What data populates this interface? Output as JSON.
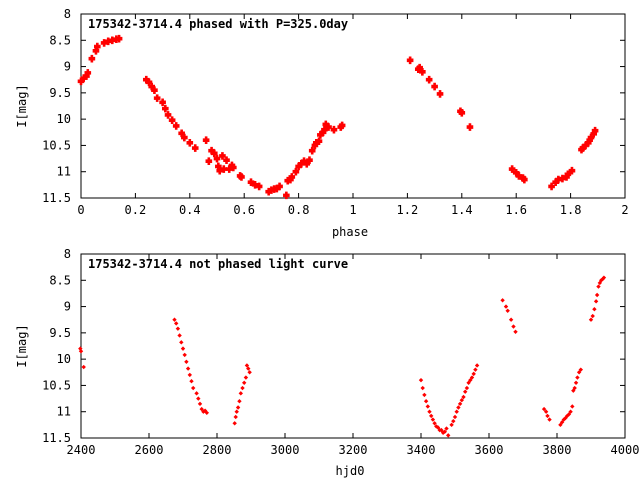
{
  "chart_data": [
    {
      "type": "scatter",
      "title": "175342-3714.4 phased with P=325.0day",
      "xlabel": "phase",
      "ylabel": "I[mag]",
      "xlim": [
        0,
        2
      ],
      "ylim": [
        11.5,
        8
      ],
      "y_inverted": true,
      "grid": false,
      "legend": "none",
      "marker_color": "#ff0000",
      "xticks": [
        "0",
        "0.2",
        "0.4",
        "0.6",
        "0.8",
        "1",
        "1.2",
        "1.4",
        "1.6",
        "1.8",
        "2"
      ],
      "yticks": [
        "8",
        "8.5",
        "9",
        "9.5",
        "10",
        "10.5",
        "11",
        "11.5"
      ],
      "series": [
        {
          "points": [
            [
              0.0,
              9.28
            ],
            [
              0.01,
              9.22
            ],
            [
              0.02,
              9.18
            ],
            [
              0.025,
              9.12
            ],
            [
              0.04,
              8.85
            ],
            [
              0.055,
              8.7
            ],
            [
              0.06,
              8.62
            ],
            [
              0.085,
              8.55
            ],
            [
              0.1,
              8.52
            ],
            [
              0.115,
              8.5
            ],
            [
              0.13,
              8.48
            ],
            [
              0.14,
              8.47
            ],
            [
              0.24,
              9.25
            ],
            [
              0.25,
              9.3
            ],
            [
              0.26,
              9.38
            ],
            [
              0.27,
              9.45
            ],
            [
              0.28,
              9.6
            ],
            [
              0.3,
              9.68
            ],
            [
              0.31,
              9.8
            ],
            [
              0.32,
              9.92
            ],
            [
              0.335,
              10.02
            ],
            [
              0.35,
              10.13
            ],
            [
              0.37,
              10.27
            ],
            [
              0.38,
              10.35
            ],
            [
              0.4,
              10.45
            ],
            [
              0.42,
              10.55
            ],
            [
              0.46,
              10.4
            ],
            [
              0.47,
              10.8
            ],
            [
              0.48,
              10.6
            ],
            [
              0.49,
              10.65
            ],
            [
              0.5,
              10.75
            ],
            [
              0.505,
              10.9
            ],
            [
              0.51,
              10.98
            ],
            [
              0.52,
              10.7
            ],
            [
              0.525,
              10.95
            ],
            [
              0.535,
              10.78
            ],
            [
              0.545,
              10.95
            ],
            [
              0.555,
              10.88
            ],
            [
              0.56,
              10.92
            ],
            [
              0.585,
              11.08
            ],
            [
              0.59,
              11.1
            ],
            [
              0.625,
              11.2
            ],
            [
              0.64,
              11.25
            ],
            [
              0.655,
              11.28
            ],
            [
              0.69,
              11.38
            ],
            [
              0.7,
              11.35
            ],
            [
              0.71,
              11.33
            ],
            [
              0.72,
              11.32
            ],
            [
              0.73,
              11.28
            ],
            [
              0.755,
              11.45
            ],
            [
              0.76,
              11.17
            ],
            [
              0.77,
              11.15
            ],
            [
              0.775,
              11.1
            ],
            [
              0.79,
              11.0
            ],
            [
              0.8,
              10.9
            ],
            [
              0.81,
              10.85
            ],
            [
              0.82,
              10.8
            ],
            [
              0.83,
              10.85
            ],
            [
              0.84,
              10.78
            ],
            [
              0.85,
              10.6
            ],
            [
              0.86,
              10.5
            ],
            [
              0.865,
              10.45
            ],
            [
              0.875,
              10.42
            ],
            [
              0.88,
              10.3
            ],
            [
              0.89,
              10.25
            ],
            [
              0.895,
              10.2
            ],
            [
              0.9,
              10.1
            ],
            [
              0.91,
              10.15
            ],
            [
              0.93,
              10.2
            ],
            [
              0.955,
              10.15
            ],
            [
              0.96,
              10.12
            ],
            [
              1.21,
              8.88
            ],
            [
              1.24,
              9.05
            ],
            [
              1.245,
              9.02
            ],
            [
              1.255,
              9.1
            ],
            [
              1.28,
              9.25
            ],
            [
              1.3,
              9.38
            ],
            [
              1.32,
              9.52
            ],
            [
              1.395,
              9.85
            ],
            [
              1.4,
              9.88
            ],
            [
              1.43,
              10.15
            ],
            [
              1.585,
              10.95
            ],
            [
              1.6,
              11.02
            ],
            [
              1.61,
              11.08
            ],
            [
              1.625,
              11.12
            ],
            [
              1.63,
              11.15
            ],
            [
              1.73,
              11.28
            ],
            [
              1.745,
              11.2
            ],
            [
              1.755,
              11.15
            ],
            [
              1.77,
              11.13
            ],
            [
              1.785,
              11.1
            ],
            [
              1.79,
              11.05
            ],
            [
              1.805,
              10.98
            ],
            [
              1.84,
              10.58
            ],
            [
              1.845,
              10.55
            ],
            [
              1.855,
              10.5
            ],
            [
              1.865,
              10.45
            ],
            [
              1.87,
              10.4
            ],
            [
              1.875,
              10.35
            ],
            [
              1.885,
              10.28
            ],
            [
              1.89,
              10.22
            ]
          ]
        }
      ]
    },
    {
      "type": "scatter",
      "title": "175342-3714.4 not phased light curve",
      "xlabel": "hjd0",
      "ylabel": "I[mag]",
      "xlim": [
        2400,
        4000
      ],
      "ylim": [
        11.5,
        8
      ],
      "y_inverted": true,
      "grid": false,
      "legend": "none",
      "marker_color": "#ff0000",
      "xticks": [
        "2400",
        "2600",
        "2800",
        "3000",
        "3200",
        "3400",
        "3600",
        "3800",
        "4000"
      ],
      "yticks": [
        "8",
        "8.5",
        "9",
        "9.5",
        "10",
        "10.5",
        "11",
        "11.5"
      ],
      "series": [
        {
          "points": [
            [
              2398,
              9.8
            ],
            [
              2400,
              9.85
            ],
            [
              2408,
              10.15
            ],
            [
              2675,
              9.25
            ],
            [
              2680,
              9.32
            ],
            [
              2685,
              9.42
            ],
            [
              2690,
              9.55
            ],
            [
              2695,
              9.68
            ],
            [
              2700,
              9.8
            ],
            [
              2705,
              9.92
            ],
            [
              2710,
              10.05
            ],
            [
              2715,
              10.18
            ],
            [
              2720,
              10.3
            ],
            [
              2725,
              10.42
            ],
            [
              2730,
              10.55
            ],
            [
              2740,
              10.65
            ],
            [
              2745,
              10.75
            ],
            [
              2750,
              10.85
            ],
            [
              2755,
              10.95
            ],
            [
              2760,
              11.0
            ],
            [
              2765,
              10.98
            ],
            [
              2770,
              11.02
            ],
            [
              2852,
              11.22
            ],
            [
              2855,
              11.1
            ],
            [
              2858,
              11.0
            ],
            [
              2862,
              10.92
            ],
            [
              2866,
              10.8
            ],
            [
              2870,
              10.65
            ],
            [
              2875,
              10.55
            ],
            [
              2880,
              10.45
            ],
            [
              2885,
              10.35
            ],
            [
              2888,
              10.12
            ],
            [
              2892,
              10.18
            ],
            [
              2896,
              10.25
            ],
            [
              3400,
              10.4
            ],
            [
              3405,
              10.55
            ],
            [
              3410,
              10.68
            ],
            [
              3415,
              10.8
            ],
            [
              3420,
              10.9
            ],
            [
              3425,
              11.0
            ],
            [
              3430,
              11.08
            ],
            [
              3435,
              11.15
            ],
            [
              3440,
              11.22
            ],
            [
              3445,
              11.28
            ],
            [
              3450,
              11.3
            ],
            [
              3455,
              11.35
            ],
            [
              3460,
              11.35
            ],
            [
              3465,
              11.4
            ],
            [
              3470,
              11.38
            ],
            [
              3475,
              11.32
            ],
            [
              3480,
              11.45
            ],
            [
              3490,
              11.25
            ],
            [
              3495,
              11.18
            ],
            [
              3500,
              11.1
            ],
            [
              3505,
              11.0
            ],
            [
              3510,
              10.92
            ],
            [
              3515,
              10.85
            ],
            [
              3520,
              10.78
            ],
            [
              3525,
              10.72
            ],
            [
              3530,
              10.62
            ],
            [
              3535,
              10.55
            ],
            [
              3540,
              10.45
            ],
            [
              3545,
              10.4
            ],
            [
              3550,
              10.35
            ],
            [
              3555,
              10.28
            ],
            [
              3560,
              10.2
            ],
            [
              3565,
              10.12
            ],
            [
              3640,
              8.88
            ],
            [
              3650,
              9.0
            ],
            [
              3655,
              9.08
            ],
            [
              3665,
              9.25
            ],
            [
              3672,
              9.38
            ],
            [
              3678,
              9.48
            ],
            [
              3762,
              10.95
            ],
            [
              3768,
              11.0
            ],
            [
              3772,
              11.08
            ],
            [
              3778,
              11.15
            ],
            [
              3810,
              11.25
            ],
            [
              3815,
              11.2
            ],
            [
              3820,
              11.15
            ],
            [
              3825,
              11.12
            ],
            [
              3830,
              11.08
            ],
            [
              3835,
              11.05
            ],
            [
              3840,
              11.0
            ],
            [
              3845,
              10.9
            ],
            [
              3848,
              10.6
            ],
            [
              3852,
              10.55
            ],
            [
              3856,
              10.45
            ],
            [
              3860,
              10.35
            ],
            [
              3865,
              10.25
            ],
            [
              3870,
              10.2
            ],
            [
              3900,
              9.25
            ],
            [
              3905,
              9.18
            ],
            [
              3910,
              9.05
            ],
            [
              3915,
              8.9
            ],
            [
              3918,
              8.78
            ],
            [
              3922,
              8.62
            ],
            [
              3926,
              8.55
            ],
            [
              3930,
              8.5
            ],
            [
              3934,
              8.48
            ],
            [
              3938,
              8.45
            ]
          ]
        }
      ]
    }
  ]
}
